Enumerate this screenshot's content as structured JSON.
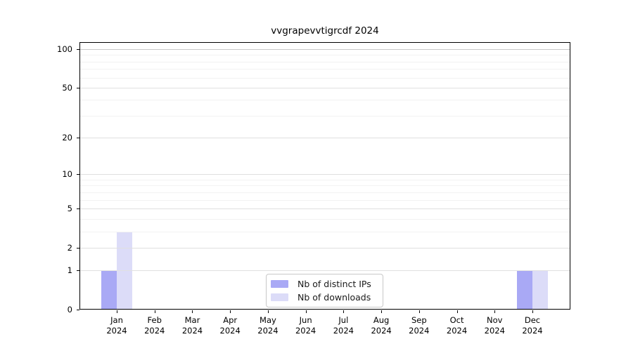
{
  "title": "vvgrapevvtigrcdf 2024",
  "chart_data": {
    "type": "bar",
    "title": "vvgrapevvtigrcdf 2024",
    "categories": [
      "Jan",
      "Feb",
      "Mar",
      "Apr",
      "May",
      "Jun",
      "Jul",
      "Aug",
      "Sep",
      "Oct",
      "Nov",
      "Dec"
    ],
    "year_label": "2024",
    "series": [
      {
        "name": "Nb of distinct IPs",
        "color": "#a9a9f5",
        "values": [
          1,
          0,
          0,
          0,
          0,
          0,
          0,
          0,
          0,
          0,
          0,
          1
        ]
      },
      {
        "name": "Nb of downloads",
        "color": "#dcdcf8",
        "values": [
          3,
          0,
          0,
          0,
          0,
          0,
          0,
          0,
          0,
          0,
          0,
          1
        ]
      }
    ],
    "y_axis": {
      "scale": "log1p",
      "ticks": [
        0,
        1,
        2,
        5,
        10,
        20,
        50,
        100
      ],
      "minor_gridlines": [
        3,
        4,
        6,
        7,
        8,
        9,
        30,
        40,
        60,
        70,
        80,
        90
      ],
      "ylim": [
        0,
        100
      ]
    },
    "grid": true,
    "legend_position": "lower center"
  },
  "colors": {
    "major_grid": "#e0e0e0",
    "minor_grid": "#f2f2f2",
    "top_grid": "#c9c9c9",
    "axis": "#000000"
  }
}
